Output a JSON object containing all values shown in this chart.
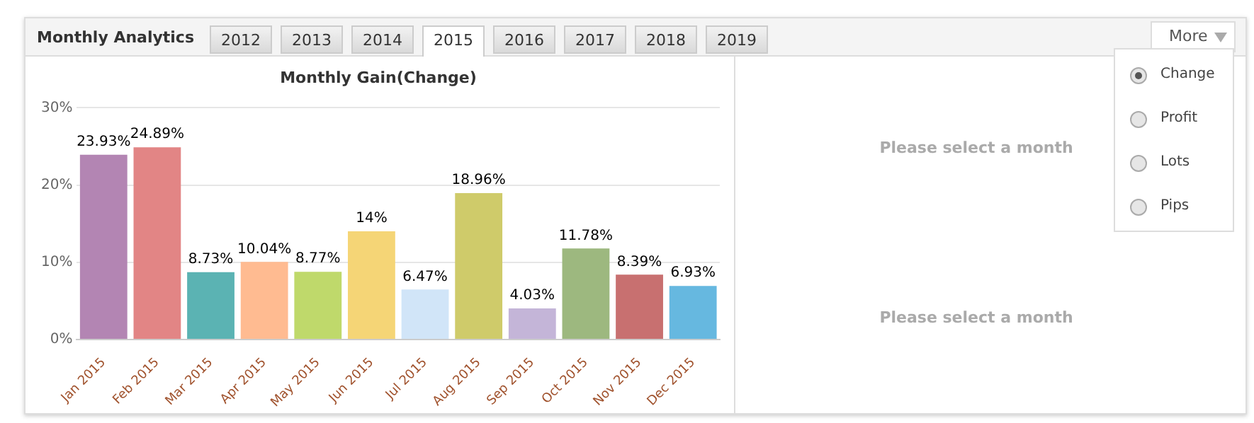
{
  "chart_data": {
    "type": "bar",
    "title": "Monthly Gain(Change)",
    "categories": [
      "Jan 2015",
      "Feb 2015",
      "Mar 2015",
      "Apr 2015",
      "May 2015",
      "Jun 2015",
      "Jul 2015",
      "Aug 2015",
      "Sep 2015",
      "Oct 2015",
      "Nov 2015",
      "Dec 2015"
    ],
    "values": [
      23.93,
      24.89,
      8.73,
      10.04,
      8.77,
      14,
      6.47,
      18.96,
      4.03,
      11.78,
      8.39,
      6.93
    ],
    "value_labels": [
      "23.93%",
      "24.89%",
      "8.73%",
      "10.04%",
      "8.77%",
      "14%",
      "6.47%",
      "18.96%",
      "4.03%",
      "11.78%",
      "8.39%",
      "6.93%"
    ],
    "colors": [
      "#b385b3",
      "#e28585",
      "#5bb3b3",
      "#ffbb91",
      "#bfd96b",
      "#f5d576",
      "#d1e5f8",
      "#cfcb6a",
      "#c4b5d8",
      "#9db87f",
      "#c87070",
      "#66b8e0"
    ],
    "ylim": [
      0,
      30
    ],
    "yticks": [
      {
        "value": 0,
        "label": "0%"
      },
      {
        "value": 10,
        "label": "10%"
      },
      {
        "value": 20,
        "label": "20%"
      },
      {
        "value": 30,
        "label": "30%"
      }
    ],
    "grid": "y",
    "legend": false,
    "annotations": [
      "Monthly Analytics",
      "2012",
      "2013",
      "2014",
      "2015",
      "2016",
      "2017",
      "2018",
      "2019",
      "More",
      "Change",
      "Profit",
      "Lots",
      "Pips",
      "Please select a month",
      "Please select a month"
    ]
  }
}
